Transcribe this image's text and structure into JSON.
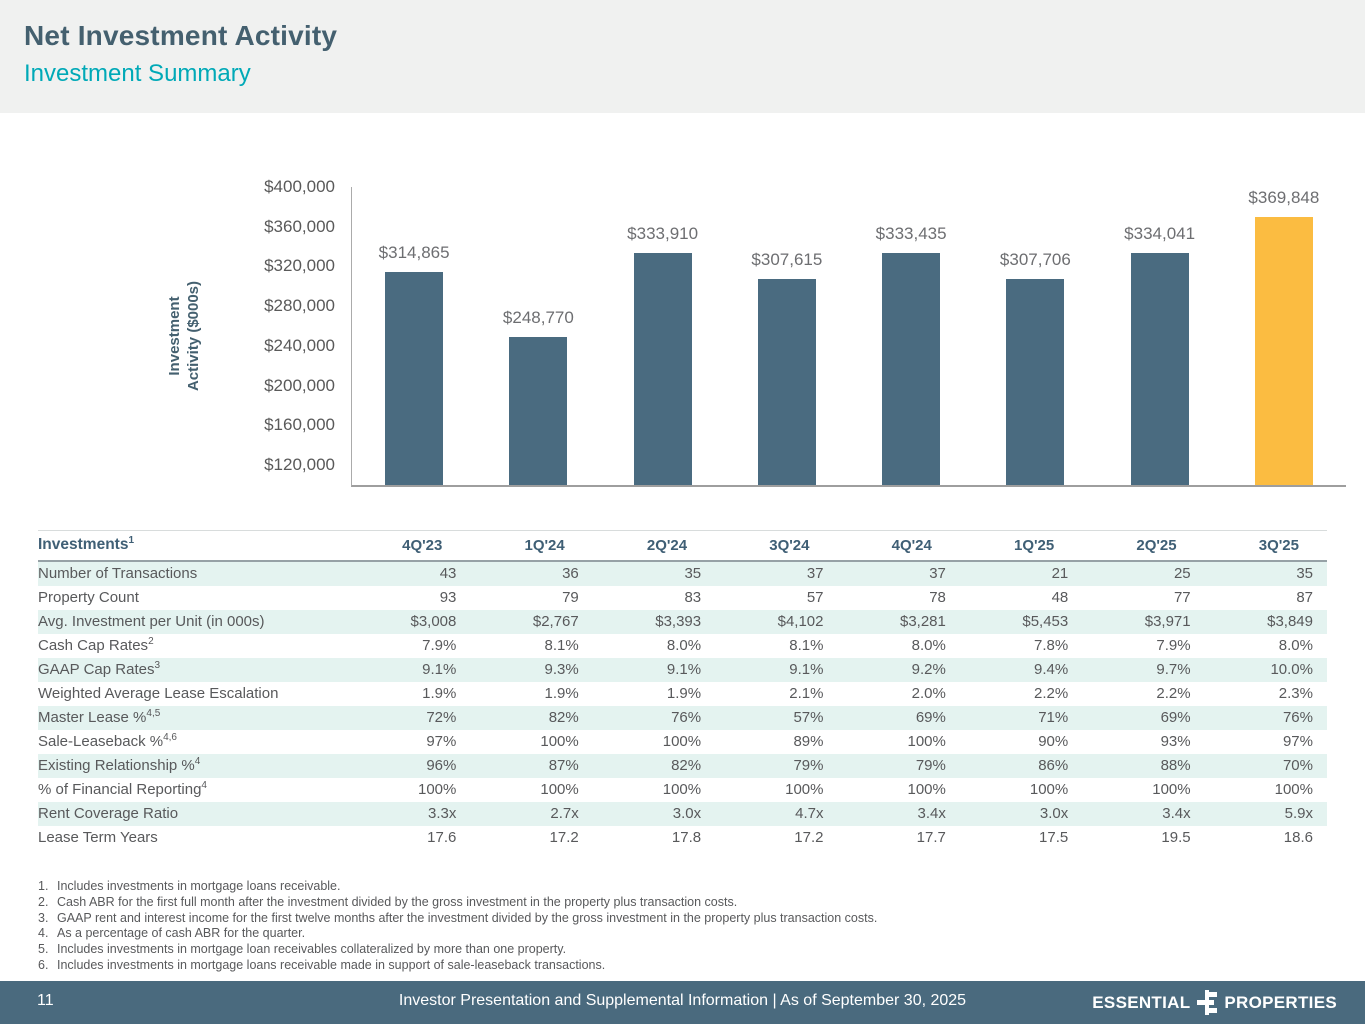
{
  "header": {
    "title": "Net Investment Activity",
    "subtitle": "Investment Summary"
  },
  "chart_data": {
    "type": "bar",
    "categories": [
      "4Q'23",
      "1Q'24",
      "2Q'24",
      "3Q'24",
      "4Q'24",
      "1Q'25",
      "2Q'25",
      "3Q'25"
    ],
    "values": [
      314865,
      248770,
      333910,
      307615,
      333435,
      307706,
      334041,
      369848
    ],
    "value_labels": [
      "$314,865",
      "$248,770",
      "$333,910",
      "$307,615",
      "$333,435",
      "$307,706",
      "$334,041",
      "$369,848"
    ],
    "title": "",
    "xlabel": "",
    "ylabel": "Investment Activity ($000s)",
    "ylabel_lines": [
      "Investment",
      "Activity ($000s)"
    ],
    "ylim": [
      100000,
      400000
    ],
    "yticks": [
      {
        "value": 400000,
        "label": "$400,000"
      },
      {
        "value": 360000,
        "label": "$360,000"
      },
      {
        "value": 320000,
        "label": "$320,000"
      },
      {
        "value": 280000,
        "label": "$280,000"
      },
      {
        "value": 240000,
        "label": "$240,000"
      },
      {
        "value": 200000,
        "label": "$200,000"
      },
      {
        "value": 160000,
        "label": "$160,000"
      },
      {
        "value": 120000,
        "label": "$120,000"
      }
    ],
    "grid": false,
    "legend": "none",
    "bar_color": "#4A6B80",
    "highlight_color": "#FBBC41",
    "highlight_index": 7
  },
  "table": {
    "title": "Investments",
    "title_sup": "1",
    "columns": [
      "4Q'23",
      "1Q'24",
      "2Q'24",
      "3Q'24",
      "4Q'24",
      "1Q'25",
      "2Q'25",
      "3Q'25"
    ],
    "rows": [
      {
        "label": "Number of Transactions",
        "sup": "",
        "values": [
          "43",
          "36",
          "35",
          "37",
          "37",
          "21",
          "25",
          "35"
        ]
      },
      {
        "label": "Property Count",
        "sup": "",
        "values": [
          "93",
          "79",
          "83",
          "57",
          "78",
          "48",
          "77",
          "87"
        ]
      },
      {
        "label": "Avg. Investment per Unit (in 000s)",
        "sup": "",
        "values": [
          "$3,008",
          "$2,767",
          "$3,393",
          "$4,102",
          "$3,281",
          "$5,453",
          "$3,971",
          "$3,849"
        ]
      },
      {
        "label": "Cash Cap Rates",
        "sup": "2",
        "values": [
          "7.9%",
          "8.1%",
          "8.0%",
          "8.1%",
          "8.0%",
          "7.8%",
          "7.9%",
          "8.0%"
        ]
      },
      {
        "label": "GAAP Cap Rates",
        "sup": "3",
        "values": [
          "9.1%",
          "9.3%",
          "9.1%",
          "9.1%",
          "9.2%",
          "9.4%",
          "9.7%",
          "10.0%"
        ]
      },
      {
        "label": "Weighted Average Lease Escalation",
        "sup": "",
        "values": [
          "1.9%",
          "1.9%",
          "1.9%",
          "2.1%",
          "2.0%",
          "2.2%",
          "2.2%",
          "2.3%"
        ]
      },
      {
        "label": "Master Lease %",
        "sup": "4,5",
        "values": [
          "72%",
          "82%",
          "76%",
          "57%",
          "69%",
          "71%",
          "69%",
          "76%"
        ]
      },
      {
        "label": "Sale-Leaseback %",
        "sup": "4,6",
        "values": [
          "97%",
          "100%",
          "100%",
          "89%",
          "100%",
          "90%",
          "93%",
          "97%"
        ]
      },
      {
        "label": "Existing Relationship %",
        "sup": "4",
        "values": [
          "96%",
          "87%",
          "82%",
          "79%",
          "79%",
          "86%",
          "88%",
          "70%"
        ]
      },
      {
        "label": "% of Financial Reporting",
        "sup": "4",
        "values": [
          "100%",
          "100%",
          "100%",
          "100%",
          "100%",
          "100%",
          "100%",
          "100%"
        ]
      },
      {
        "label": "Rent Coverage Ratio",
        "sup": "",
        "values": [
          "3.3x",
          "2.7x",
          "3.0x",
          "4.7x",
          "3.4x",
          "3.0x",
          "3.4x",
          "5.9x"
        ]
      },
      {
        "label": "Lease Term Years",
        "sup": "",
        "values": [
          "17.6",
          "17.2",
          "17.8",
          "17.2",
          "17.7",
          "17.5",
          "19.5",
          "18.6"
        ]
      }
    ]
  },
  "footnotes": [
    {
      "num": "1.",
      "text": "Includes investments in mortgage loans receivable."
    },
    {
      "num": "2.",
      "text": "Cash ABR for the first full month after the investment divided by the gross investment in the property plus transaction costs."
    },
    {
      "num": "3.",
      "text": "GAAP rent and interest income for the first twelve months after the investment divided by the gross investment in the property plus transaction costs."
    },
    {
      "num": "4.",
      "text": "As a percentage of cash ABR for the quarter."
    },
    {
      "num": "5.",
      "text": "Includes investments in mortgage loan receivables collateralized by more than one property."
    },
    {
      "num": "6.",
      "text": "Includes investments in mortgage loans receivable made in support of sale-leaseback transactions."
    }
  ],
  "footer": {
    "page_number": "11",
    "text": "Investor Presentation and Supplemental Information |  As of September 30, 2025",
    "logo_word_left": "ESSENTIAL",
    "logo_word_right": "PROPERTIES"
  },
  "colors": {
    "header_band": "#F0F1F0",
    "title": "#44606F",
    "subtitle": "#00A9B7",
    "bar": "#4A6B80",
    "bar_highlight": "#FBBC41",
    "table_header_text": "#3F5F75",
    "table_stripe": "#E4F3F0",
    "body_text": "#58595B",
    "footer_bg": "#4A6A7E"
  }
}
